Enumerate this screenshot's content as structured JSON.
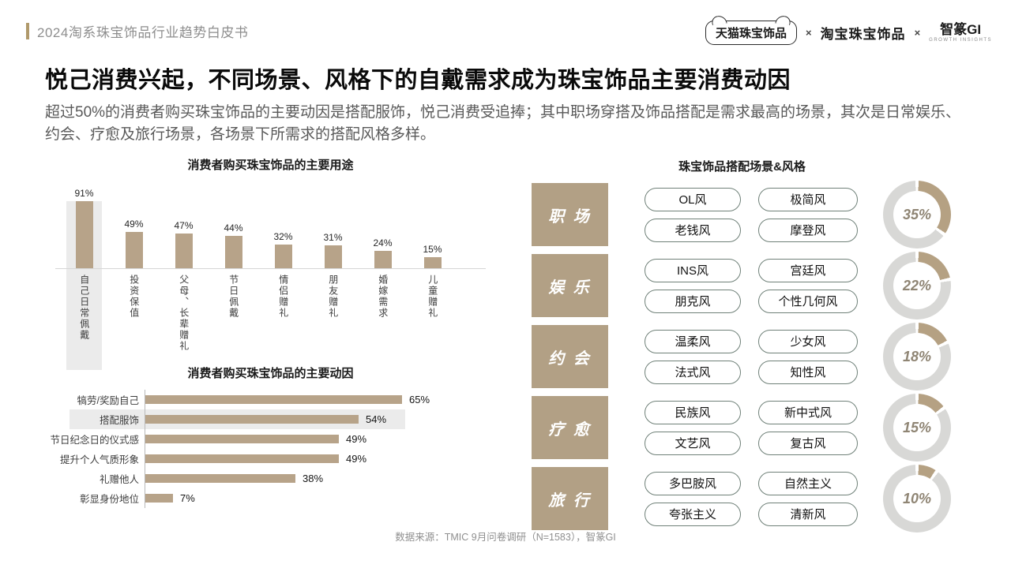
{
  "page": {
    "header": {
      "doc_title": "2024淘系珠宝饰品行业趋势白皮书"
    },
    "title": "悦己消费兴起，不同场景、风格下的自戴需求成为珠宝饰品主要消费动因",
    "subtitle": "超过50%的消费者购买珠宝饰品的主要动因是搭配服饰，悦己消费受追捧；其中职场穿搭及饰品搭配是需求最高的场景，其次是日常娱乐、约会、疗愈及旅行场景，各场景下所需求的搭配风格多样。",
    "footer": "数据来源：TMIC 9月问卷调研（N=1583），智篆GI"
  },
  "logos": {
    "tmall": "天猫珠宝饰品",
    "sep": "×",
    "taobao": "淘宝珠宝饰品",
    "zhizhuan": "智篆GI",
    "zhizhuan_sub": "GROWTH INSIGHTS"
  },
  "colors": {
    "bar_tan": "#b7a389",
    "scene_box_tan": "#b2a085",
    "donut_tan": "#b5a183",
    "donut_gray": "#d8d8d6",
    "highlight_gray": "#ebebeb",
    "pill_border": "#6f8078",
    "header_accent": "#b0996b"
  },
  "chart_data": [
    {
      "type": "bar",
      "orientation": "vertical",
      "title": "消费者购买珠宝饰品的主要用途",
      "categories": [
        "自己日常佩戴",
        "投资保值",
        "父母、长辈赠礼",
        "节日佩戴",
        "情侣赠礼",
        "朋友赠礼",
        "婚嫁需求",
        "儿童赠礼"
      ],
      "values": [
        91,
        49,
        47,
        44,
        32,
        31,
        24,
        15
      ],
      "unit": "%",
      "highlight_index": 0,
      "ylim": [
        0,
        100
      ],
      "grid": false,
      "data_labels": true,
      "legend_position": "none"
    },
    {
      "type": "bar",
      "orientation": "horizontal",
      "title": "消费者购买珠宝饰品的主要动因",
      "categories": [
        "犒劳/奖励自己",
        "搭配服饰",
        "节日纪念日的仪式感",
        "提升个人气质形象",
        "礼赠他人",
        "彰显身份地位"
      ],
      "values": [
        65,
        54,
        49,
        49,
        38,
        7
      ],
      "unit": "%",
      "highlight_index": 1,
      "xlim": [
        0,
        70
      ],
      "grid": false,
      "data_labels": true,
      "legend_position": "none"
    },
    {
      "type": "pie",
      "variant": "donut",
      "title": "珠宝饰品搭配场景&风格",
      "categories": [
        "职场",
        "娱乐",
        "约会",
        "疗愈",
        "旅行"
      ],
      "values": [
        35,
        22,
        18,
        15,
        10
      ],
      "unit": "%",
      "start_angle": "top",
      "direction": "clockwise",
      "legend_position": "none"
    }
  ],
  "scene_panel": {
    "scenes": [
      {
        "label": "职 场",
        "styles": [
          "OL风",
          "极简风",
          "老钱风",
          "摩登风"
        ]
      },
      {
        "label": "娱 乐",
        "styles": [
          "INS风",
          "宫廷风",
          "朋克风",
          "个性几何风"
        ]
      },
      {
        "label": "约 会",
        "styles": [
          "温柔风",
          "少女风",
          "法式风",
          "知性风"
        ]
      },
      {
        "label": "疗 愈",
        "styles": [
          "民族风",
          "新中式风",
          "文艺风",
          "复古风"
        ]
      },
      {
        "label": "旅 行",
        "styles": [
          "多巴胺风",
          "自然主义",
          "夸张主义",
          "清新风"
        ]
      }
    ]
  }
}
